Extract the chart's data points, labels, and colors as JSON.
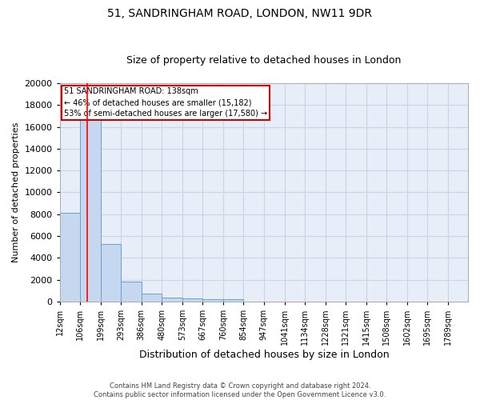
{
  "title1": "51, SANDRINGHAM ROAD, LONDON, NW11 9DR",
  "title2": "Size of property relative to detached houses in London",
  "xlabel": "Distribution of detached houses by size in London",
  "ylabel": "Number of detached properties",
  "footer1": "Contains HM Land Registry data © Crown copyright and database right 2024.",
  "footer2": "Contains public sector information licensed under the Open Government Licence v3.0.",
  "annotation_line1": "51 SANDRINGHAM ROAD: 138sqm",
  "annotation_line2": "← 46% of detached houses are smaller (15,182)",
  "annotation_line3": "53% of semi-detached houses are larger (17,580) →",
  "bar_edges": [
    12,
    106,
    199,
    293,
    386,
    480,
    573,
    667,
    760,
    854,
    947,
    1041,
    1134,
    1228,
    1321,
    1415,
    1508,
    1602,
    1695,
    1789,
    1882
  ],
  "bar_heights": [
    8100,
    16600,
    5300,
    1850,
    700,
    370,
    290,
    220,
    190,
    0,
    0,
    0,
    0,
    0,
    0,
    0,
    0,
    0,
    0,
    0
  ],
  "bar_color": "#c5d8f0",
  "bar_edge_color": "#6aa0cc",
  "red_line_x": 138,
  "ylim": [
    0,
    20000
  ],
  "yticks": [
    0,
    2000,
    4000,
    6000,
    8000,
    10000,
    12000,
    14000,
    16000,
    18000,
    20000
  ],
  "grid_color": "#c8d4e8",
  "bg_color": "#e8eef8",
  "title1_fontsize": 10,
  "title2_fontsize": 9,
  "xlabel_fontsize": 9,
  "ylabel_fontsize": 8,
  "annotation_fontsize": 7,
  "footer_fontsize": 6,
  "annotation_box_color": "#ffffff",
  "annotation_box_edge": "#cc0000"
}
